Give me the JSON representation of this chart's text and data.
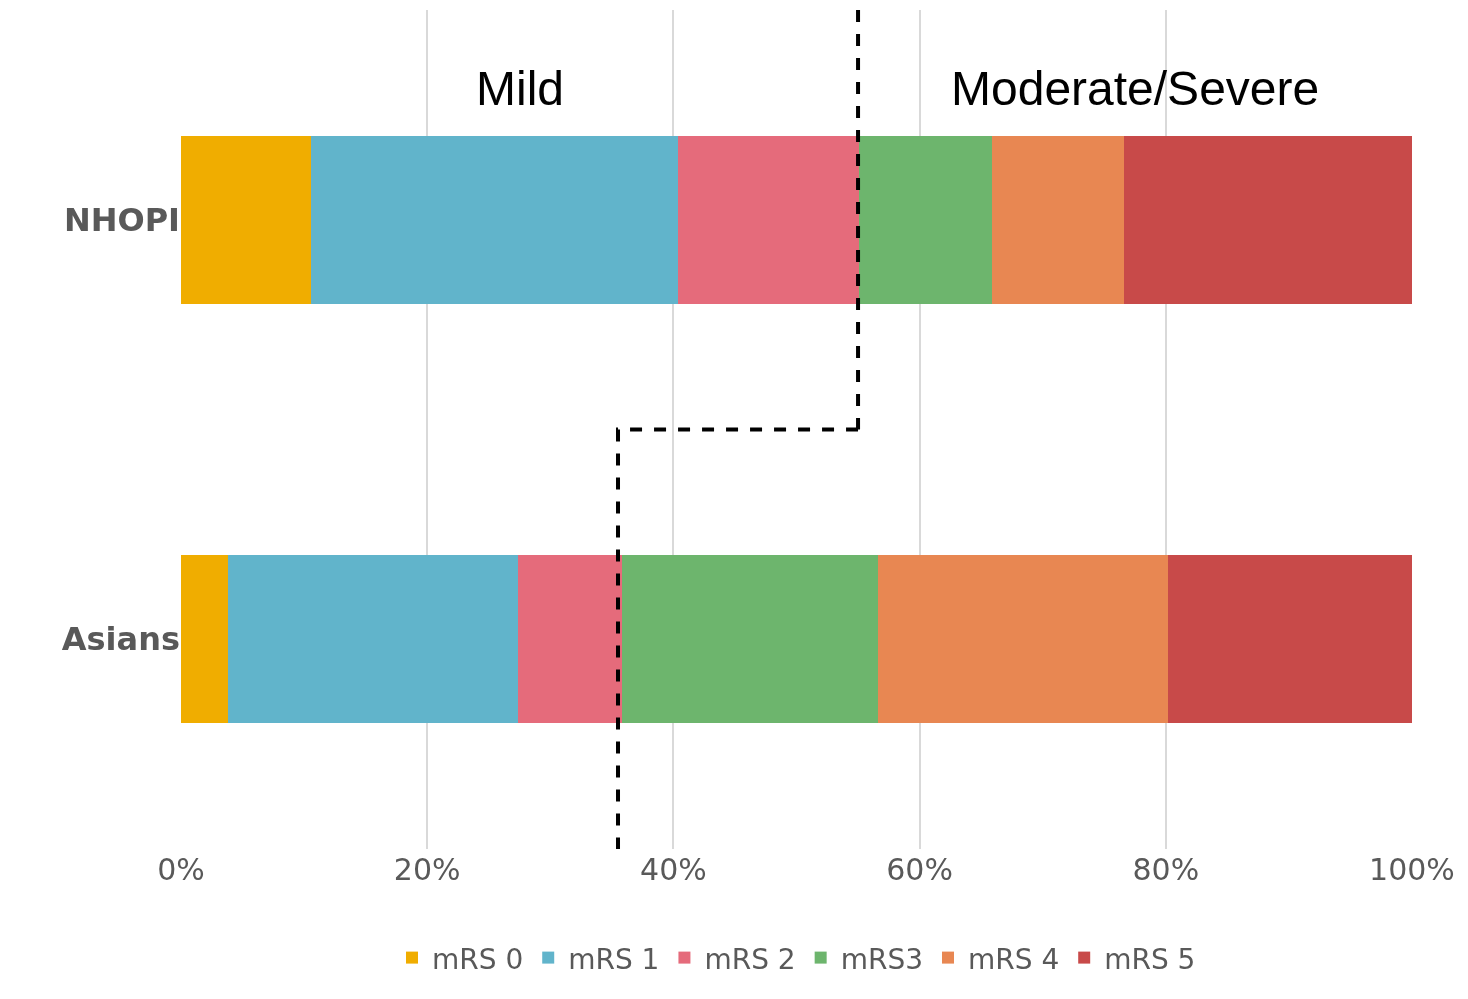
{
  "chart_data": {
    "type": "bar",
    "orientation": "horizontal",
    "stacked": true,
    "categories": [
      "NHOPI",
      "Asians"
    ],
    "series": [
      {
        "name": "mRS 0",
        "color": "#f0ad00",
        "values": [
          10.6,
          3.8
        ]
      },
      {
        "name": "mRS 1",
        "color": "#61b4cb",
        "values": [
          29.8,
          23.6
        ]
      },
      {
        "name": "mRS 2",
        "color": "#e56b7b",
        "values": [
          14.7,
          8.4
        ]
      },
      {
        "name": "mRS3",
        "color": "#6db56d",
        "values": [
          10.8,
          20.8
        ]
      },
      {
        "name": "mRS 4",
        "color": "#e88752",
        "values": [
          10.7,
          23.6
        ]
      },
      {
        "name": "mRS 5",
        "color": "#c84a49",
        "values": [
          23.4,
          19.8
        ]
      }
    ],
    "xlim": [
      0,
      100
    ],
    "xticks": [
      {
        "value": 0,
        "label": "0%"
      },
      {
        "value": 20,
        "label": "20%"
      },
      {
        "value": 40,
        "label": "40%"
      },
      {
        "value": 60,
        "label": "60%"
      },
      {
        "value": 80,
        "label": "80%"
      },
      {
        "value": 100,
        "label": "100%"
      }
    ],
    "grid": "x",
    "legend": "bottom",
    "ref_lines": [
      {
        "axis": "x",
        "value": 55,
        "line_style": "dashed",
        "color": "#000000"
      },
      {
        "axis": "x",
        "value": 35.5,
        "line_style": "dashed",
        "color": "#000000"
      }
    ],
    "annotations": [
      "Mild",
      "Moderate/Severe"
    ]
  }
}
